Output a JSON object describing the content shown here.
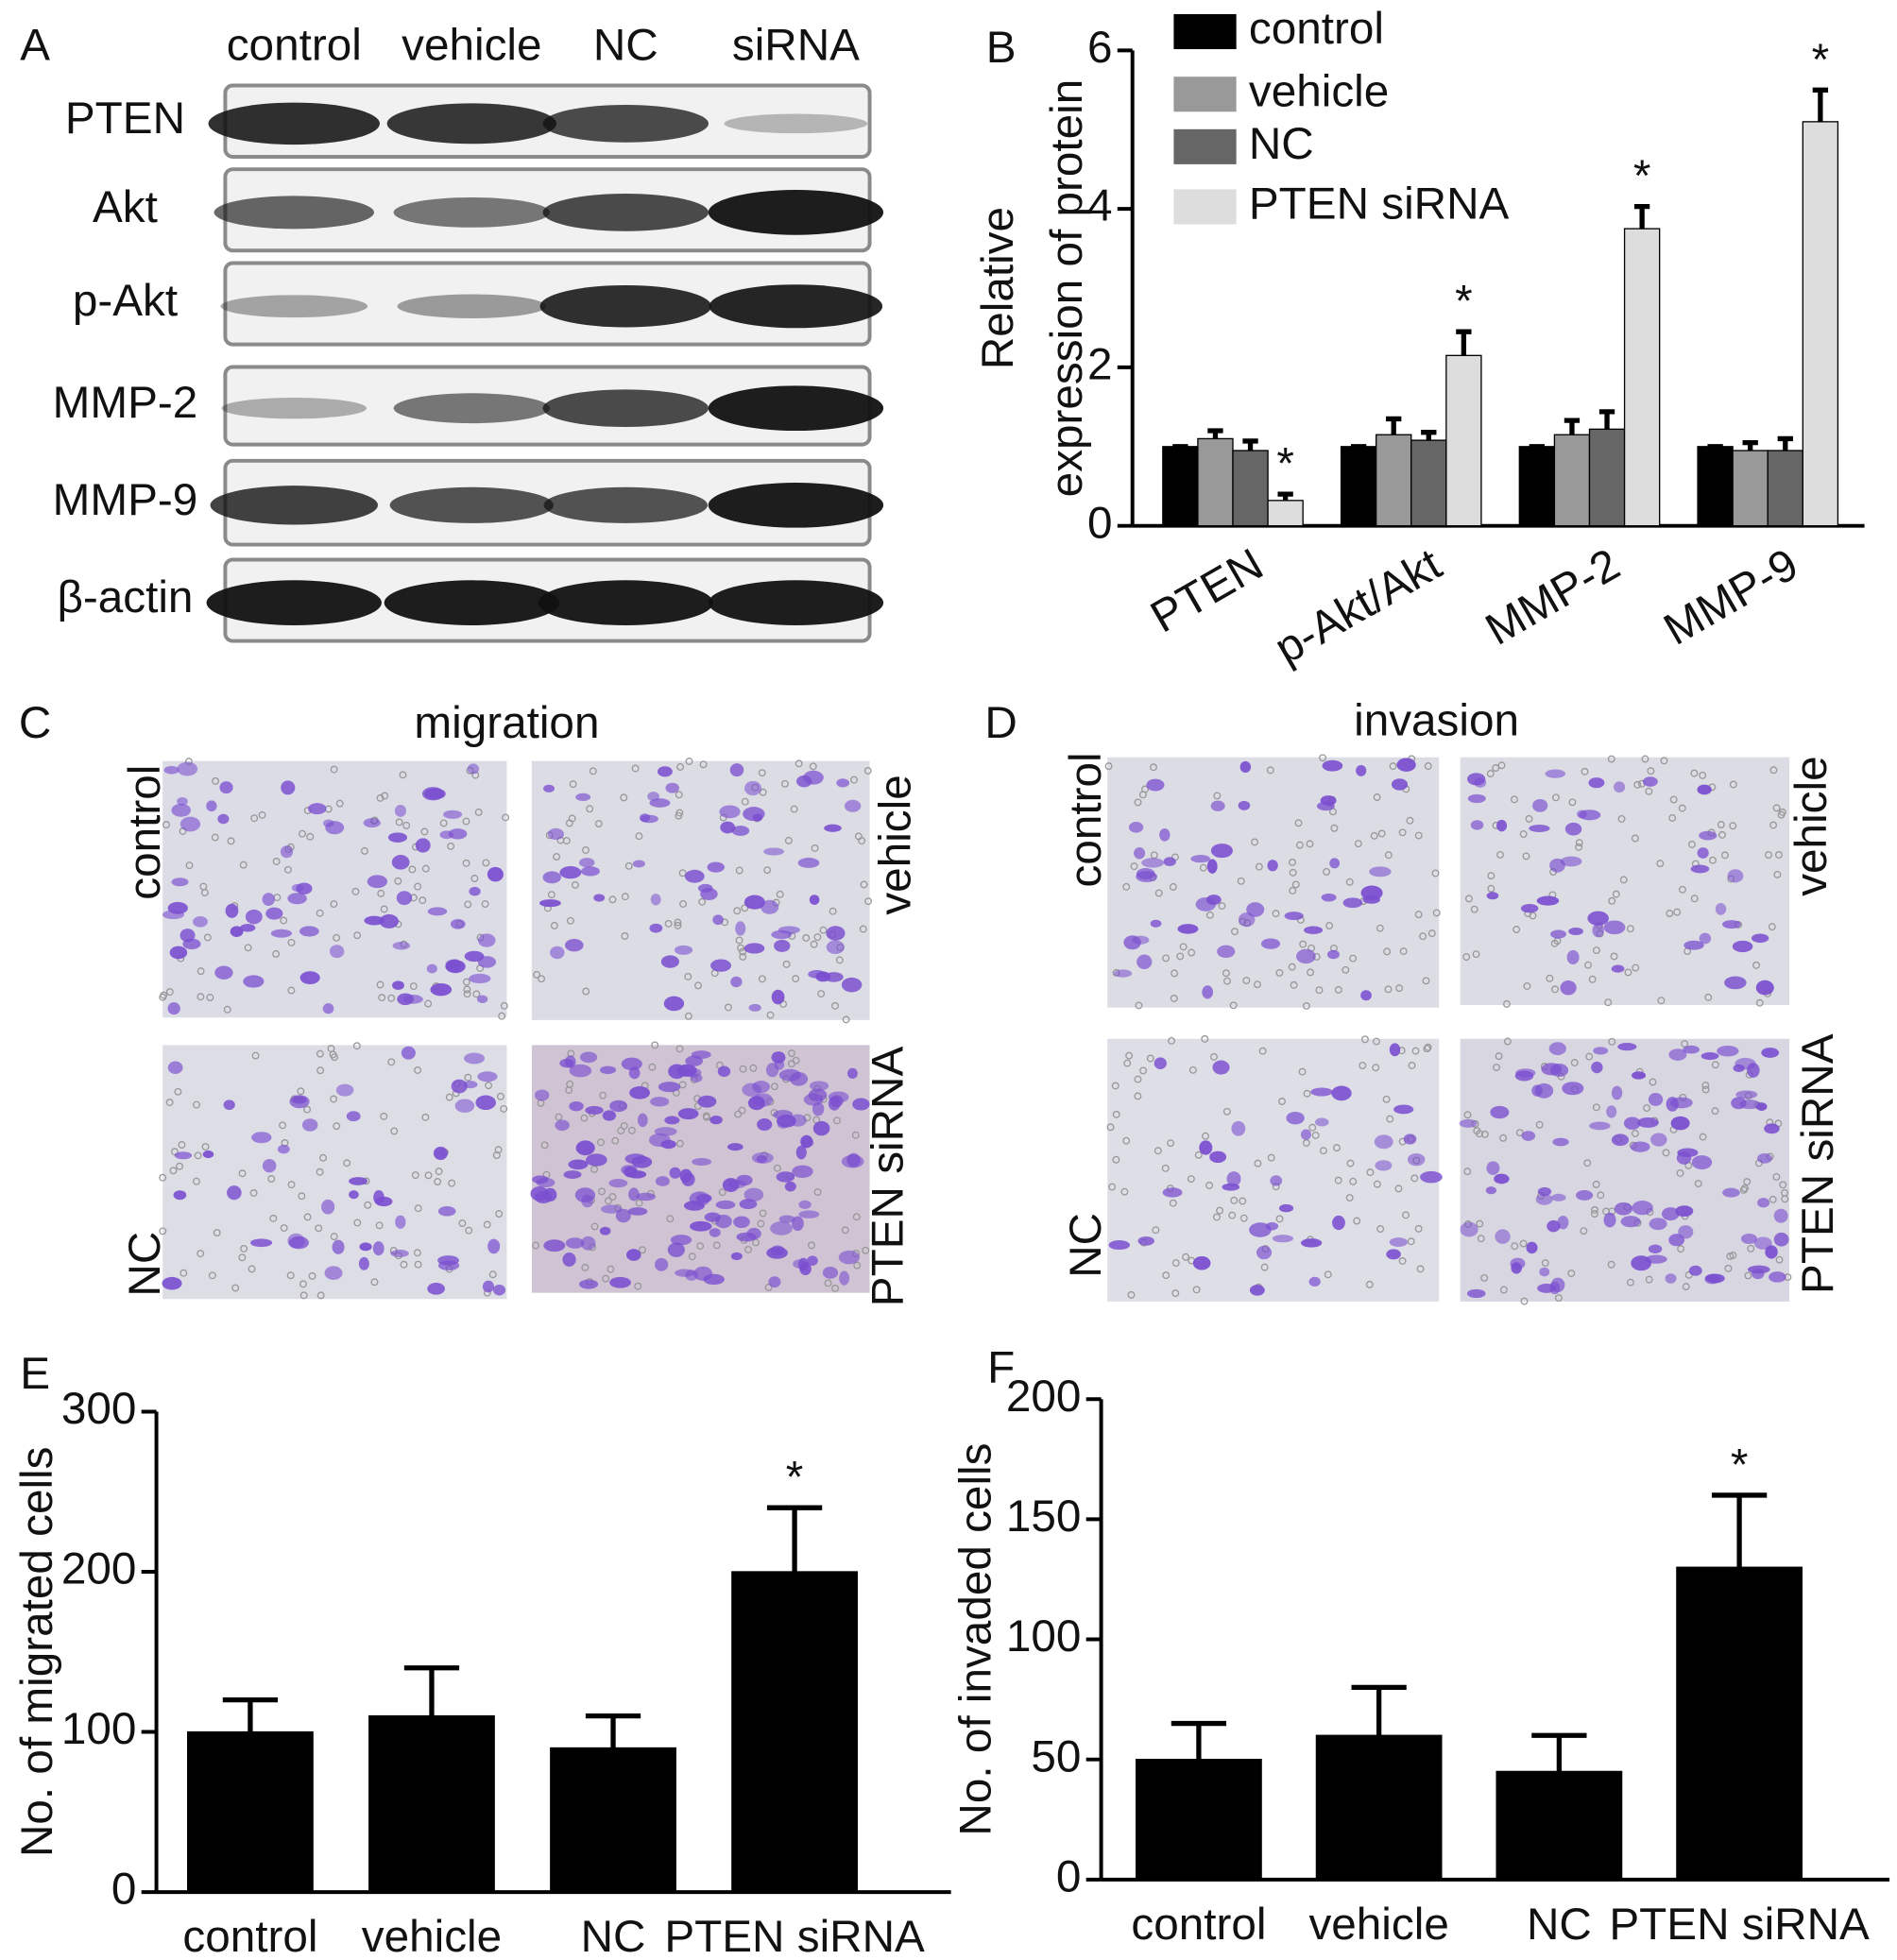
{
  "figure": {
    "panel_labels": [
      "A",
      "B",
      "C",
      "D",
      "E",
      "F"
    ]
  },
  "blot": {
    "lanes": [
      "control",
      "vehicle",
      "NC",
      "siRNA"
    ],
    "proteins": [
      "PTEN",
      "Akt",
      "p-Akt",
      "MMP-2",
      "MMP-9",
      "β-actin"
    ]
  },
  "migration": {
    "title": "migration",
    "conditions": [
      "control",
      "vehicle",
      "NC",
      "PTEN siRNA"
    ]
  },
  "invasion": {
    "title": "invasion",
    "conditions": [
      "control",
      "vehicle",
      "NC",
      "PTEN siRNA"
    ]
  },
  "chart_data": [
    {
      "type": "bar",
      "categories": [
        "PTEN",
        "p-Akt/Akt",
        "MMP-2",
        "MMP-9"
      ],
      "y_label": [
        "Relative",
        "expression of protein"
      ],
      "ylim": [
        0,
        6
      ],
      "yticks": [
        0,
        2,
        4,
        6
      ],
      "legend": "upper left",
      "series": [
        {
          "name": "control",
          "color": "#000000",
          "values": [
            1,
            1,
            1,
            1
          ],
          "errors": [
            0,
            0,
            0,
            0
          ],
          "annotations": [
            null,
            null,
            null,
            null
          ]
        },
        {
          "name": "vehicle",
          "color": "#999999",
          "values": [
            1.1,
            1.15,
            1.15,
            0.95
          ],
          "errors": [
            0.1,
            0.2,
            0.18,
            0.1
          ],
          "annotations": [
            null,
            null,
            null,
            null
          ]
        },
        {
          "name": "NC",
          "color": "#666666",
          "values": [
            0.95,
            1.08,
            1.22,
            0.95
          ],
          "errors": [
            0.12,
            0.1,
            0.22,
            0.15
          ],
          "annotations": [
            null,
            null,
            null,
            null
          ]
        },
        {
          "name": "PTEN siRNA",
          "color": "#dddddd",
          "values": [
            0.32,
            2.15,
            3.75,
            5.1
          ],
          "errors": [
            0.08,
            0.3,
            0.28,
            0.4
          ],
          "annotations": [
            "*",
            "*",
            "*",
            "*"
          ]
        }
      ]
    },
    {
      "type": "bar",
      "categories": [
        "control",
        "vehicle",
        "NC",
        "PTEN siRNA"
      ],
      "values": [
        100,
        110,
        90,
        200
      ],
      "errors": [
        20,
        30,
        20,
        40
      ],
      "annotations": [
        null,
        null,
        null,
        "*"
      ],
      "color": "#000000",
      "y_label": "No. of migrated cells",
      "ylim": [
        0,
        300
      ],
      "yticks": [
        0,
        100,
        200,
        300
      ]
    },
    {
      "type": "bar",
      "categories": [
        "control",
        "vehicle",
        "NC",
        "PTEN siRNA"
      ],
      "values": [
        50,
        60,
        45,
        130
      ],
      "errors": [
        15,
        20,
        15,
        30
      ],
      "annotations": [
        null,
        null,
        null,
        "*"
      ],
      "color": "#000000",
      "y_label": "No. of invaded cells",
      "ylim": [
        0,
        200
      ],
      "yticks": [
        0,
        50,
        100,
        150,
        200
      ]
    }
  ]
}
